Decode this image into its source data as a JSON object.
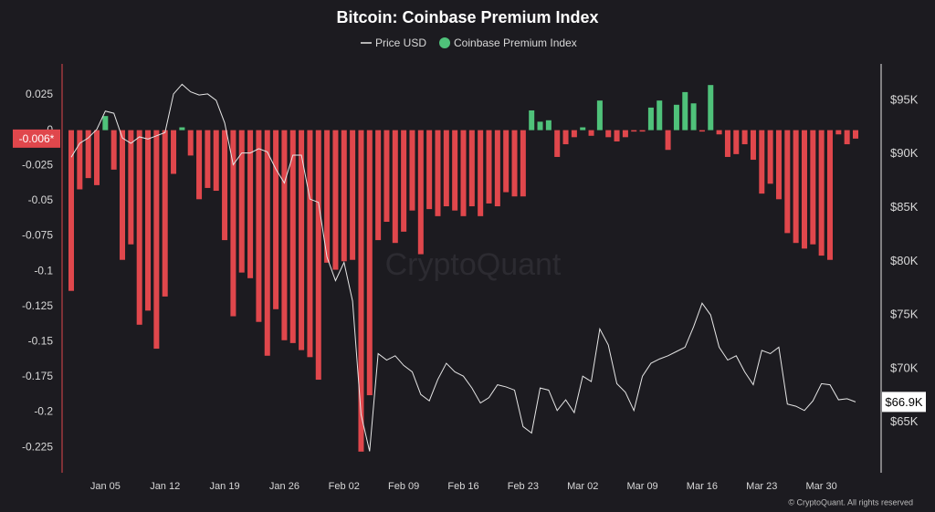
{
  "chart_data": {
    "type": "combo",
    "title": "Bitcoin: Coinbase Premium Index",
    "watermark": "CryptoQuant",
    "copyright": "© CryptoQuant. All rights reserved",
    "last_value_label": "-0.006*",
    "last_price_label": "$66.9K",
    "categories": [
      null,
      null,
      null,
      null,
      "Jan 05",
      null,
      null,
      null,
      null,
      null,
      null,
      "Jan 12",
      null,
      null,
      null,
      null,
      null,
      null,
      "Jan 19",
      null,
      null,
      null,
      null,
      null,
      null,
      "Jan 26",
      null,
      null,
      null,
      null,
      null,
      null,
      "Feb 02",
      null,
      null,
      null,
      null,
      null,
      null,
      "Feb 09",
      null,
      null,
      null,
      null,
      null,
      null,
      "Feb 16",
      null,
      null,
      null,
      null,
      null,
      null,
      "Feb 23",
      null,
      null,
      null,
      null,
      null,
      null,
      "Mar 02",
      null,
      null,
      null,
      null,
      null,
      null,
      "Mar 09",
      null,
      null,
      null,
      null,
      null,
      null,
      "Mar 16",
      null,
      null,
      null,
      null,
      null,
      null,
      "Mar 23",
      null,
      null,
      null,
      null,
      null,
      null,
      "Mar 30",
      null,
      null,
      null,
      null
    ],
    "series": [
      {
        "name": "Price USD",
        "type": "line",
        "axis": "y2",
        "color": "#e6e6e6",
        "values": [
          89700,
          91000,
          91500,
          92300,
          94000,
          93800,
          91500,
          91000,
          91600,
          91400,
          91700,
          92000,
          95600,
          96500,
          95800,
          95500,
          95600,
          95000,
          92900,
          89000,
          90100,
          90100,
          90500,
          90200,
          88600,
          87300,
          89900,
          89900,
          85800,
          85500,
          80400,
          78200,
          79900,
          76300,
          65700,
          62300,
          71400,
          70800,
          71200,
          70300,
          69700,
          67600,
          67000,
          69000,
          70500,
          69700,
          69300,
          68200,
          66800,
          67300,
          68500,
          68300,
          68000,
          64600,
          64000,
          68200,
          68000,
          66100,
          67100,
          65900,
          69300,
          68800,
          73700,
          72200,
          68600,
          67800,
          66100,
          69300,
          70500,
          70900,
          71200,
          71600,
          72000,
          73900,
          76100,
          75000,
          72000,
          70800,
          71200,
          69700,
          68500,
          71700,
          71400,
          72000,
          66700,
          66500,
          66100,
          67000,
          68600,
          68500,
          67100,
          67200,
          66900
        ]
      },
      {
        "name": "Coinbase Premium Index",
        "type": "bar",
        "color": "#4fc27a",
        "negative_color": "#e0474c",
        "values": [
          -0.114,
          -0.042,
          -0.034,
          -0.039,
          0.01,
          -0.028,
          -0.092,
          -0.081,
          -0.138,
          -0.128,
          -0.155,
          -0.118,
          -0.031,
          0.002,
          -0.018,
          -0.049,
          -0.041,
          -0.043,
          -0.078,
          -0.132,
          -0.101,
          -0.105,
          -0.136,
          -0.16,
          -0.127,
          -0.149,
          -0.151,
          -0.156,
          -0.161,
          -0.177,
          -0.094,
          -0.099,
          -0.093,
          -0.092,
          -0.228,
          -0.188,
          -0.078,
          -0.065,
          -0.08,
          -0.072,
          -0.057,
          -0.088,
          -0.056,
          -0.061,
          -0.054,
          -0.057,
          -0.061,
          -0.054,
          -0.061,
          -0.052,
          -0.054,
          -0.044,
          -0.047,
          -0.047,
          0.014,
          0.006,
          0.007,
          -0.019,
          -0.01,
          -0.005,
          0.002,
          -0.004,
          0.021,
          -0.005,
          -0.008,
          -0.005,
          -0.001,
          -0.001,
          0.016,
          0.021,
          -0.014,
          0.018,
          0.027,
          0.019,
          -0.001,
          0.032,
          -0.003,
          -0.019,
          -0.017,
          -0.01,
          -0.021,
          -0.045,
          -0.038,
          -0.049,
          -0.073,
          -0.08,
          -0.084,
          -0.081,
          -0.089,
          -0.092,
          -0.003,
          -0.01,
          -0.006
        ]
      }
    ],
    "ylim": [
      -0.243,
      0.047
    ],
    "yticks": [
      0.025,
      0,
      -0.025,
      -0.05,
      -0.075,
      -0.1,
      -0.125,
      -0.15,
      -0.175,
      -0.2,
      -0.225
    ],
    "y2lim": [
      60300,
      98400
    ],
    "y2ticks": [
      {
        "value": 65000,
        "label": "$65K"
      },
      {
        "value": 70000,
        "label": "$70K"
      },
      {
        "value": 75000,
        "label": "$75K"
      },
      {
        "value": 80000,
        "label": "$80K"
      },
      {
        "value": 85000,
        "label": "$85K"
      },
      {
        "value": 90000,
        "label": "$90K"
      },
      {
        "value": 95000,
        "label": "$95K"
      }
    ],
    "grid": false
  }
}
